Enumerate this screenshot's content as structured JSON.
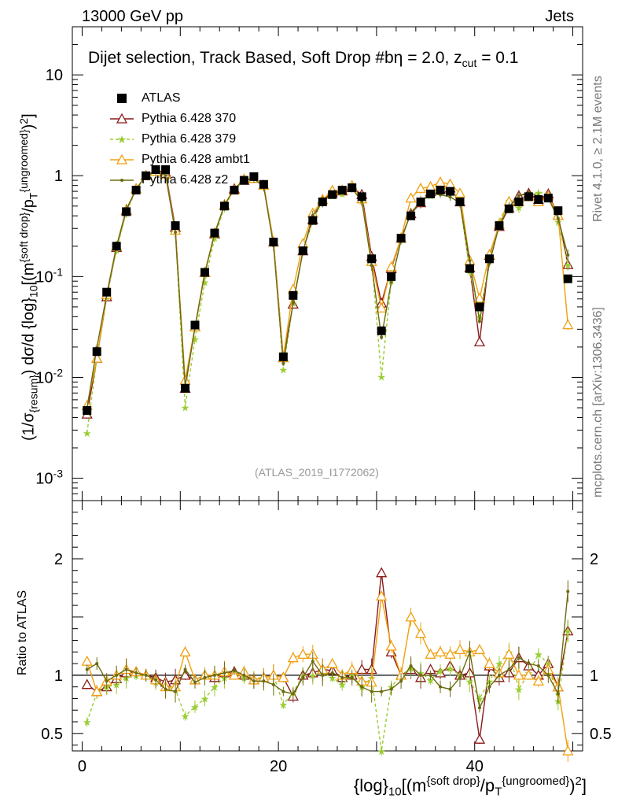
{
  "header": {
    "left": "13000 GeV pp",
    "right": "Jets",
    "title": "Dijet selection, Track Based, Soft Drop #bη = 2.0, z",
    "title_sub": "cut",
    "title_tail": " = 0.1"
  },
  "side": {
    "rivet": "Rivet 4.1.0, ≥ 2.1M events",
    "mcplots": "mcplots.cern.ch [arXiv:1306.3436]"
  },
  "watermark": "(ATLAS_2019_I1772062)",
  "axes": {
    "ylabel_main": "(1/σ{resum}) dσ/d {log}10[(m{soft drop}/pT{ungroomed})2]",
    "ylabel_ratio": "Ratio to ATLAS",
    "xlabel": "{log}10[(m{soft drop}/pT{ungroomed})2]"
  },
  "legend": [
    {
      "label": "ATLAS",
      "color": "#000000",
      "marker": "square"
    },
    {
      "label": "Pythia 6.428 370",
      "color": "#8b1a1a",
      "marker": "triangle-open"
    },
    {
      "label": "Pythia 6.428 379",
      "color": "#9acd32",
      "marker": "star"
    },
    {
      "label": "Pythia 6.428 ambt1",
      "color": "#f0a010",
      "marker": "triangle-open"
    },
    {
      "label": "Pythia 6.428 z2",
      "color": "#6b6b10",
      "marker": "dot"
    }
  ],
  "chart_data": {
    "type": "scatter",
    "title": "Dijet selection, Track Based, Soft Drop #bη = 2.0, z_cut = 0.1",
    "xlim": [
      -1,
      51
    ],
    "ylim_main": [
      0.0006,
      30
    ],
    "ylim_ratio": [
      0.35,
      2.5
    ],
    "x_ticks": [
      0,
      20,
      40
    ],
    "y_ticks_main": [
      "10^-3",
      "10^-2",
      "10^-1",
      "1",
      "10"
    ],
    "y_ticks_ratio": [
      "0.5",
      "1",
      "2"
    ],
    "atlas_x": [
      0.5,
      1.5,
      2.5,
      3.5,
      4.5,
      5.5,
      6.5,
      7.5,
      8.5,
      9.5,
      10.5,
      11.5,
      12.5,
      13.5,
      14.5,
      15.5,
      16.5,
      17.5,
      18.5,
      19.5,
      20.5,
      21.5,
      22.5,
      23.5,
      24.5,
      25.5,
      26.5,
      27.5,
      28.5,
      29.5,
      30.5,
      31.5,
      32.5,
      33.5,
      34.5,
      35.5,
      36.5,
      37.5,
      38.5,
      39.5,
      40.5,
      41.5,
      42.5,
      43.5,
      44.5,
      45.5,
      46.5,
      47.5,
      48.5,
      49.5
    ],
    "atlas_y": [
      0.0047,
      0.018,
      0.07,
      0.2,
      0.44,
      0.72,
      1.0,
      1.15,
      1.15,
      0.32,
      0.0078,
      0.033,
      0.11,
      0.27,
      0.5,
      0.72,
      0.9,
      0.98,
      0.82,
      0.22,
      0.016,
      0.065,
      0.18,
      0.36,
      0.55,
      0.65,
      0.72,
      0.76,
      0.62,
      0.15,
      0.029,
      0.1,
      0.24,
      0.4,
      0.55,
      0.66,
      0.72,
      0.7,
      0.55,
      0.12,
      0.05,
      0.15,
      0.32,
      0.47,
      0.55,
      0.62,
      0.58,
      0.6,
      0.45,
      0.095
    ],
    "series": [
      {
        "name": "Pythia 6.428 370",
        "ratio": [
          0.92,
          0.86,
          0.9,
          0.97,
          1.02,
          1.03,
          1.0,
          0.98,
          0.94,
          0.96,
          1.0,
          0.96,
          1.0,
          0.98,
          1.02,
          1.03,
          1.0,
          0.96,
          0.98,
          1.0,
          0.98,
          0.82,
          1.0,
          1.02,
          1.05,
          1.04,
          0.98,
          1.0,
          1.05,
          1.05,
          1.88,
          1.2,
          1.0,
          1.05,
          0.98,
          1.05,
          1.02,
          1.08,
          1.0,
          1.02,
          0.45,
          1.08,
          0.98,
          1.02,
          1.15,
          1.08,
          1.0,
          1.1,
          0.9,
          1.38
        ]
      },
      {
        "name": "Pythia 6.428 379",
        "ratio": [
          0.6,
          0.85,
          0.9,
          0.92,
          0.98,
          1.0,
          1.0,
          0.94,
          0.9,
          0.88,
          0.65,
          0.73,
          0.8,
          0.9,
          0.98,
          1.02,
          0.98,
          0.97,
          0.98,
          1.0,
          0.75,
          0.85,
          1.0,
          1.0,
          1.02,
          0.98,
          0.92,
          1.0,
          0.9,
          0.98,
          0.35,
          0.9,
          1.0,
          1.06,
          1.02,
          0.96,
          1.04,
          1.06,
          1.0,
          0.95,
          0.8,
          0.95,
          1.1,
          1.2,
          0.88,
          1.02,
          1.18,
          1.1,
          0.78,
          1.38
        ]
      },
      {
        "name": "Pythia 6.428 ambt1",
        "ratio": [
          1.12,
          0.86,
          0.95,
          1.0,
          1.05,
          1.03,
          1.0,
          0.96,
          0.9,
          0.9,
          1.2,
          0.96,
          1.0,
          1.0,
          1.03,
          1.0,
          1.03,
          0.96,
          0.98,
          1.0,
          0.98,
          1.15,
          1.18,
          1.18,
          1.05,
          1.1,
          1.0,
          1.05,
          0.95,
          0.94,
          1.68,
          1.25,
          1.0,
          1.5,
          1.36,
          1.18,
          1.2,
          1.18,
          1.22,
          1.2,
          1.22,
          1.1,
          1.02,
          1.18,
          1.0,
          1.0,
          0.95,
          1.05,
          0.9,
          0.35
        ]
      },
      {
        "name": "Pythia 6.428 z2",
        "ratio": [
          1.05,
          1.1,
          0.95,
          1.0,
          1.05,
          1.02,
          1.0,
          0.96,
          0.88,
          0.86,
          1.05,
          0.94,
          0.98,
          1.0,
          1.02,
          1.04,
          1.0,
          0.95,
          0.95,
          0.92,
          0.86,
          0.84,
          0.98,
          1.12,
          1.0,
          1.02,
          0.98,
          0.98,
          0.9,
          0.86,
          0.86,
          0.88,
          0.95,
          1.08,
          1.0,
          1.0,
          0.9,
          0.88,
          0.98,
          1.2,
          0.72,
          0.9,
          1.0,
          1.05,
          1.15,
          1.1,
          1.08,
          1.0,
          0.84,
          1.72
        ]
      }
    ]
  }
}
